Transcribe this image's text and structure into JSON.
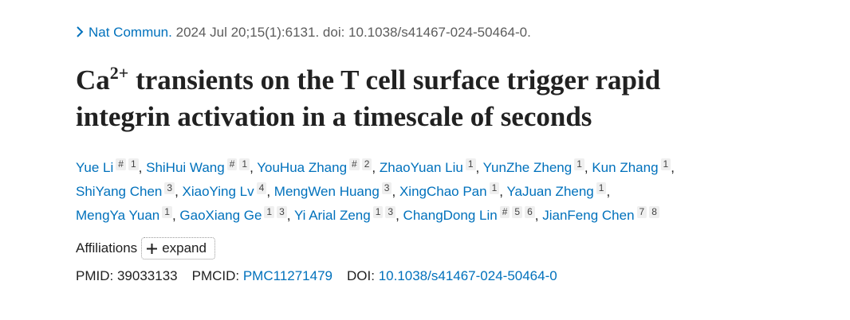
{
  "citation": {
    "journal": "Nat Commun.",
    "details": "2024 Jul 20;15(1):6131. doi: 10.1038/s41467-024-50464-0."
  },
  "title": {
    "prefix": "Ca",
    "superscript": "2+",
    "rest": " transients on the T cell surface trigger rapid integrin activation in a timescale of seconds"
  },
  "author_separator": ",",
  "authors": [
    {
      "name": "Yue Li",
      "marks": [
        "#",
        "1"
      ]
    },
    {
      "name": "ShiHui Wang",
      "marks": [
        "#",
        "1"
      ]
    },
    {
      "name": "YouHua Zhang",
      "marks": [
        "#",
        "2"
      ]
    },
    {
      "name": "ZhaoYuan Liu",
      "marks": [
        "1"
      ]
    },
    {
      "name": "YunZhe Zheng",
      "marks": [
        "1"
      ]
    },
    {
      "name": "Kun Zhang",
      "marks": [
        "1"
      ]
    },
    {
      "name": "ShiYang Chen",
      "marks": [
        "3"
      ]
    },
    {
      "name": "XiaoYing Lv",
      "marks": [
        "4"
      ]
    },
    {
      "name": "MengWen Huang",
      "marks": [
        "3"
      ]
    },
    {
      "name": "XingChao Pan",
      "marks": [
        "1"
      ]
    },
    {
      "name": "YaJuan Zheng",
      "marks": [
        "1"
      ]
    },
    {
      "name": "MengYa Yuan",
      "marks": [
        "1"
      ]
    },
    {
      "name": "GaoXiang Ge",
      "marks": [
        "1",
        "3"
      ]
    },
    {
      "name": "Yi Arial Zeng",
      "marks": [
        "1",
        "3"
      ]
    },
    {
      "name": "ChangDong Lin",
      "marks": [
        "#",
        "5",
        "6"
      ]
    },
    {
      "name": "JianFeng Chen",
      "marks": [
        "7",
        "8"
      ]
    }
  ],
  "affiliations": {
    "label": "Affiliations",
    "button": "expand"
  },
  "identifiers": [
    {
      "label": "PMID:",
      "value": "39033133",
      "link": false
    },
    {
      "label": "PMCID:",
      "value": "PMC11271479",
      "link": true
    },
    {
      "label": "DOI:",
      "value": "10.1038/s41467-024-50464-0",
      "link": true
    }
  ]
}
